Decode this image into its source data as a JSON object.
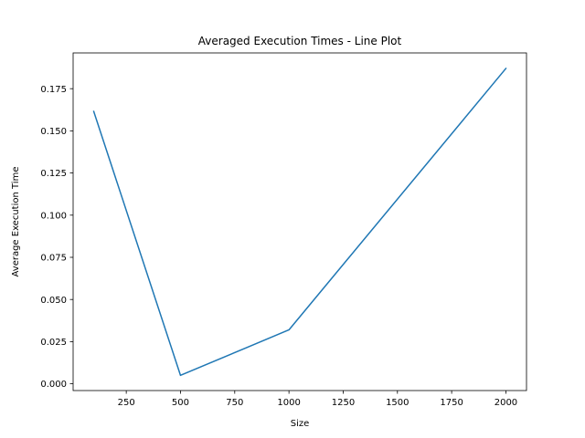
{
  "chart_data": {
    "type": "line",
    "title": "Averaged Execution Times - Line Plot",
    "xlabel": "Size",
    "ylabel": "Average Execution Time",
    "xlim": [
      5,
      2095
    ],
    "ylim": [
      -0.004,
      0.1962
    ],
    "xticks": [
      250,
      500,
      750,
      1000,
      1250,
      1500,
      1750,
      2000
    ],
    "xtick_labels": [
      "250",
      "500",
      "750",
      "1000",
      "1250",
      "1500",
      "1750",
      "2000"
    ],
    "yticks": [
      0.0,
      0.025,
      0.05,
      0.075,
      0.1,
      0.125,
      0.15,
      0.175
    ],
    "ytick_labels": [
      "0.000",
      "0.025",
      "0.050",
      "0.075",
      "0.100",
      "0.125",
      "0.150",
      "0.175"
    ],
    "grid": false,
    "color": "#1f77b4",
    "series": [
      {
        "x": [
          100,
          500,
          1000,
          2000
        ],
        "values": [
          0.1615,
          0.005,
          0.032,
          0.187
        ]
      }
    ]
  }
}
